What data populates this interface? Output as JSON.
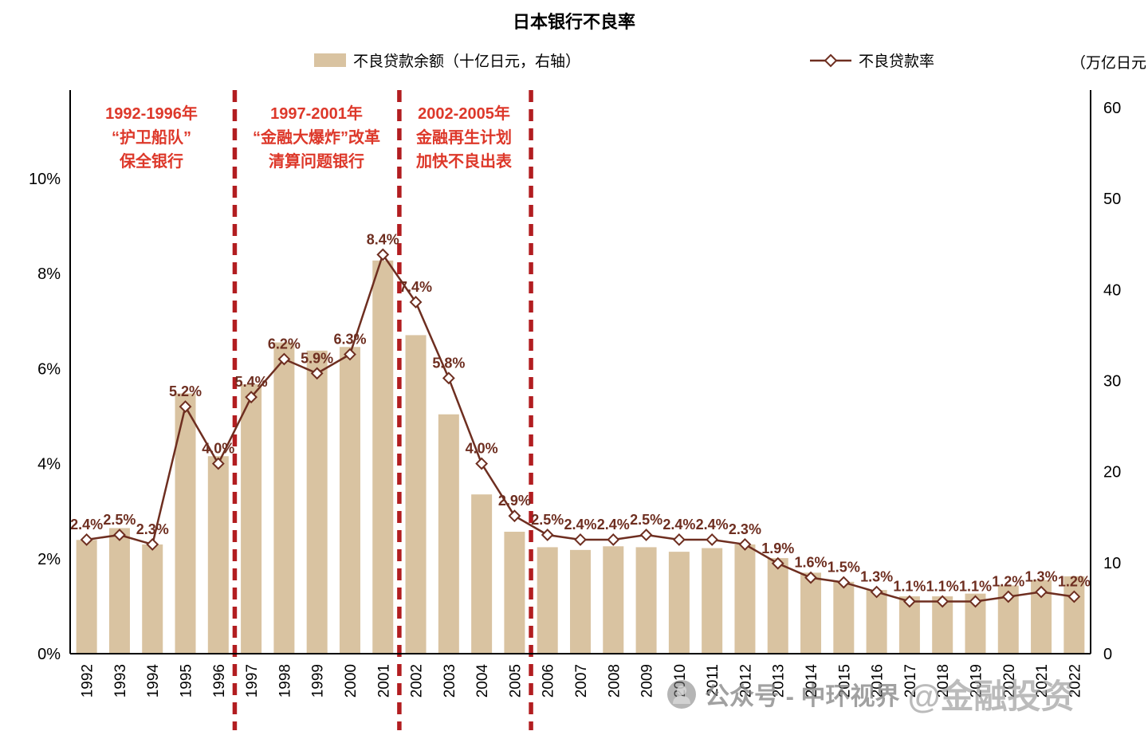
{
  "title": "日本银行不良率",
  "legend": {
    "bar_label": "不良贷款余额（十亿日元，右轴）",
    "line_label": "不良贷款率",
    "unit_label": "（万亿日元"
  },
  "annotations": [
    {
      "lines": [
        "1992-1996年",
        "“护卫船队”",
        "保全银行"
      ]
    },
    {
      "lines": [
        "1997-2001年",
        "“金融大爆炸”改革",
        "清算问题银行"
      ]
    },
    {
      "lines": [
        "2002-2005年",
        "金融再生计划",
        "加快不良出表"
      ]
    }
  ],
  "watermark": {
    "icon": "wechat-public-account-icon",
    "prefix": "公众号 - 中环视界",
    "suffix": "@金融投资"
  },
  "colors": {
    "bar": "#d9c3a1",
    "line": "#6e2e20",
    "marker_fill": "#ffffff",
    "divider": "#b21d20",
    "annotation": "#dd382a",
    "axis": "#000000"
  },
  "chart_data": {
    "type": "bar+line",
    "title": "日本银行不良率",
    "legend_position": "top",
    "grid": false,
    "categories": [
      "1992",
      "1993",
      "1994",
      "1995",
      "1996",
      "1997",
      "1998",
      "1999",
      "2000",
      "2001",
      "2002",
      "2003",
      "2004",
      "2005",
      "2006",
      "2007",
      "2008",
      "2009",
      "2010",
      "2011",
      "2012",
      "2013",
      "2014",
      "2015",
      "2016",
      "2017",
      "2018",
      "2019",
      "2020",
      "2021",
      "2022"
    ],
    "series": [
      {
        "name": "不良贷款余额（十亿日元，右轴）",
        "type": "bar",
        "axis": "right",
        "values": [
          12.5,
          13.8,
          12.0,
          28.6,
          21.7,
          29.6,
          34.2,
          33.3,
          33.7,
          43.2,
          35.0,
          26.3,
          17.5,
          13.4,
          11.7,
          11.4,
          11.8,
          11.7,
          11.2,
          11.6,
          12.0,
          10.5,
          8.9,
          7.9,
          7.0,
          6.3,
          6.3,
          6.6,
          7.5,
          8.1,
          8.5
        ]
      },
      {
        "name": "不良贷款率",
        "type": "line",
        "axis": "left",
        "values": [
          2.4,
          2.5,
          2.3,
          5.2,
          4.0,
          5.4,
          6.2,
          5.9,
          6.3,
          8.4,
          7.4,
          5.8,
          4.0,
          2.9,
          2.5,
          2.4,
          2.4,
          2.5,
          2.4,
          2.4,
          2.3,
          1.9,
          1.6,
          1.5,
          1.3,
          1.1,
          1.1,
          1.1,
          1.2,
          1.3,
          1.2
        ],
        "labels": [
          "2.4%",
          "2.5%",
          "2.3%",
          "5.2%",
          "4.0%",
          "5.4%",
          "6.2%",
          "5.9%",
          "6.3%",
          "8.4%",
          "7.4%",
          "5.8%",
          "4.0%",
          "2.9%",
          "2.5%",
          "2.4%",
          "2.4%",
          "2.5%",
          "2.4%",
          "2.4%",
          "2.3%",
          "1.9%",
          "1.6%",
          "1.5%",
          "1.3%",
          "1.1%",
          "1.1%",
          "1.1%",
          "1.2%",
          "1.3%",
          "1.2%"
        ]
      }
    ],
    "left_axis": {
      "ticks": [
        "0%",
        "2%",
        "4%",
        "6%",
        "8%",
        "10%"
      ],
      "min": 0,
      "max": 10
    },
    "right_axis": {
      "ticks": [
        "0",
        "10",
        "20",
        "30",
        "40",
        "50",
        "60"
      ],
      "min": 0,
      "max": 60
    },
    "dividers_after": [
      "1996",
      "2001",
      "2005"
    ]
  }
}
